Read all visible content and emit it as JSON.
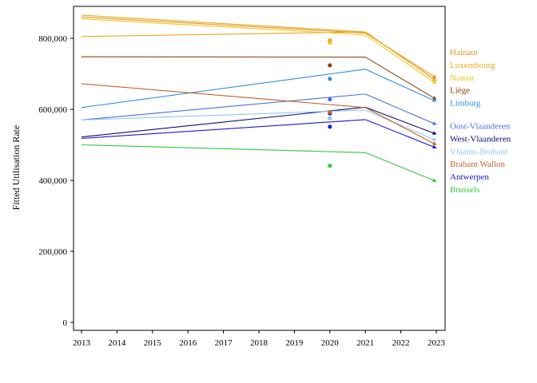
{
  "chart_data": {
    "type": "line",
    "title": "",
    "xlabel": "",
    "ylabel": "Fitted Utilisation Rate",
    "x": [
      2013,
      2021,
      2023
    ],
    "xticks": [
      "2013",
      "2014",
      "2015",
      "2016",
      "2017",
      "2018",
      "2019",
      "2020",
      "2021",
      "2022",
      "2023"
    ],
    "xlim": [
      2013,
      2023
    ],
    "yticks": [
      "0",
      "200,000",
      "400,000",
      "600,000",
      "800,000"
    ],
    "ylim": [
      0,
      870000
    ],
    "grid": false,
    "legend_position": "right",
    "series": [
      {
        "name": "Hainaut",
        "color": "#e8951c",
        "values": [
          860000,
          815000,
          688000
        ],
        "observed_2020": 794000
      },
      {
        "name": "Luxembourg",
        "color": "#e8a81c",
        "values": [
          865000,
          818000,
          680000
        ],
        "observed_2020": 792000
      },
      {
        "name": "Namur",
        "color": "#f2c418",
        "values": [
          855000,
          810000,
          672000
        ],
        "observed_2020": 788000
      },
      {
        "name": "Liège",
        "color": "#8b4513",
        "values": [
          748000,
          747000,
          628000
        ],
        "observed_2020": 724000
      },
      {
        "name": "Limburg",
        "color": "#2f8fe0",
        "values": [
          605000,
          713000,
          622000
        ],
        "observed_2020": 686000
      },
      {
        "name": "Oost-Vlaanderen",
        "color": "#4a6fe0",
        "values": [
          570000,
          643000,
          557000
        ],
        "observed_2020": 628000
      },
      {
        "name": "West-Vlaanderen",
        "color": "#0b0b70",
        "values": [
          522000,
          606000,
          530000
        ],
        "observed_2020": 589000
      },
      {
        "name": "Vlaams-Brabant",
        "color": "#8ec8f2",
        "values": [
          570000,
          598000,
          512000
        ],
        "observed_2020": 575000
      },
      {
        "name": "Brabant Wallon",
        "color": "#c8602a",
        "values": [
          672000,
          605000,
          500000
        ],
        "observed_2020": 592000
      },
      {
        "name": "Antwerpen",
        "color": "#1a1ad0",
        "values": [
          518000,
          571000,
          491000
        ],
        "observed_2020": 551000
      },
      {
        "name": "Brussels",
        "color": "#2ec83a",
        "values": [
          500000,
          478000,
          397000
        ],
        "observed_2020": 441000
      }
    ],
    "extra_lines": [
      {
        "color": "#e8a81c",
        "values": [
          805000,
          818000,
          681000
        ]
      }
    ]
  }
}
